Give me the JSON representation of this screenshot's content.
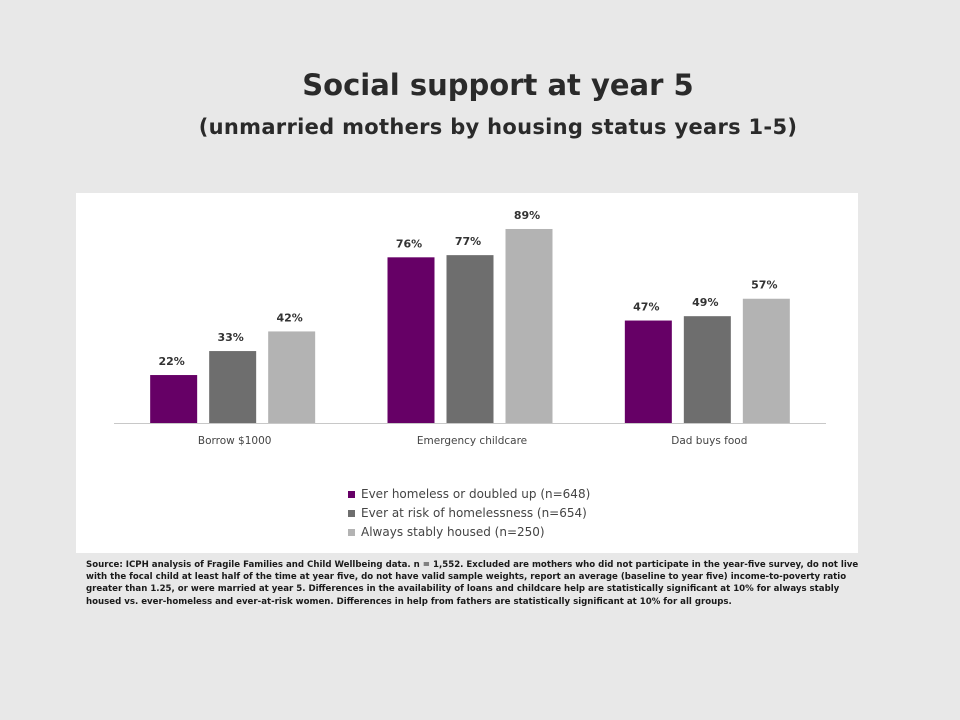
{
  "slide": {
    "title": "Social support at year 5",
    "subtitle": "(unmarried mothers by housing status years 1-5)",
    "source": "Source: ICPH analysis of Fragile Families and Child Wellbeing data. n = 1,552. Excluded are mothers who did not participate in the year-five survey, do not live with the focal child at least half of the time at year five, do not have valid sample weights, report an average (baseline to year five) income-to-poverty ratio greater than 1.25, or were married at year 5. Differences in the availability of loans and childcare help are statistically significant at 10% for always stably housed vs. ever-homeless and ever-at-risk women. Differences in help from fathers are statistically significant at 10% for all groups."
  },
  "chart_data": {
    "type": "bar",
    "categories": [
      "Borrow $1000",
      "Emergency childcare",
      "Dad buys food"
    ],
    "series": [
      {
        "name": "Ever homeless or doubled up (n=648)",
        "values": [
          22,
          76,
          47
        ],
        "labels": [
          "22%",
          "76%",
          "47%"
        ],
        "color": "#660066"
      },
      {
        "name": "Ever at risk of homelessness (n=654)",
        "values": [
          33,
          77,
          49
        ],
        "labels": [
          "33%",
          "77%",
          "49%"
        ],
        "color": "#6e6e6e"
      },
      {
        "name": "Always stably housed (n=250)",
        "values": [
          42,
          89,
          57
        ],
        "labels": [
          "42%",
          "89%",
          "57%"
        ],
        "color": "#b3b3b3"
      }
    ],
    "ylim": [
      0,
      100
    ],
    "grid": false,
    "legend_position": "bottom"
  }
}
